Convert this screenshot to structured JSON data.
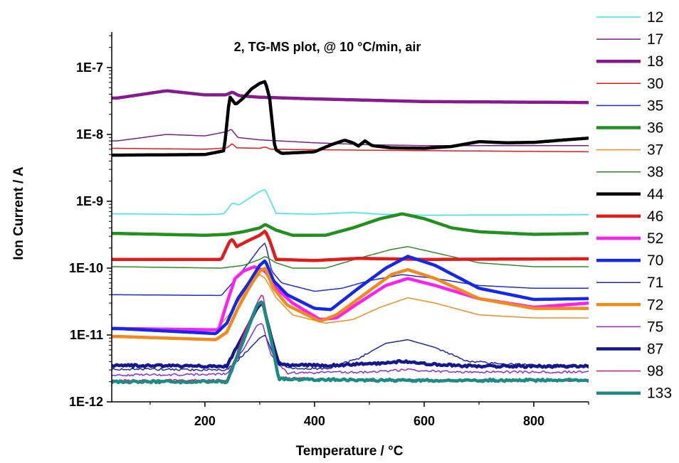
{
  "chart_data": {
    "type": "line",
    "title": "2, TG-MS plot, @ 10 °C/min, air",
    "xlabel": "Temperature / °C",
    "ylabel": "Ion Current / A",
    "xlim": [
      30,
      900
    ],
    "ylim": [
      1e-12,
      3e-07
    ],
    "yscale": "log",
    "x_ticks": [
      200,
      400,
      600,
      800
    ],
    "x_tick_labels": [
      "200",
      "400",
      "600",
      "800"
    ],
    "y_ticks": [
      1e-12,
      1e-11,
      1e-10,
      1e-09,
      1e-08,
      1e-07
    ],
    "y_tick_labels": [
      "1E-12",
      "1E-11",
      "1E-10",
      "1E-9",
      "1E-8",
      "1E-7"
    ],
    "grid": false,
    "legend_position": "right",
    "series": [
      {
        "name": "12",
        "color": "#33e6f0",
        "width": 1.5,
        "points": [
          [
            40,
            6.5e-10
          ],
          [
            200,
            6.3e-10
          ],
          [
            235,
            6.5e-10
          ],
          [
            250,
            9.5e-10
          ],
          [
            262,
            8.8e-10
          ],
          [
            280,
            1.1e-09
          ],
          [
            300,
            1.4e-09
          ],
          [
            310,
            1.5e-09
          ],
          [
            320,
            1e-09
          ],
          [
            330,
            6.6e-10
          ],
          [
            400,
            6.4e-10
          ],
          [
            470,
            6.8e-10
          ],
          [
            520,
            6.4e-10
          ],
          [
            600,
            6.2e-10
          ],
          [
            900,
            6.3e-10
          ]
        ]
      },
      {
        "name": "17",
        "color": "#7b1f86",
        "width": 1.5,
        "points": [
          [
            40,
            8e-09
          ],
          [
            130,
            1e-08
          ],
          [
            200,
            9.5e-09
          ],
          [
            240,
            1.1e-08
          ],
          [
            248,
            1.2e-08
          ],
          [
            260,
            9e-09
          ],
          [
            300,
            8.3e-09
          ],
          [
            400,
            7.5e-09
          ],
          [
            500,
            7e-09
          ],
          [
            600,
            6.8e-09
          ],
          [
            900,
            6.8e-09
          ]
        ]
      },
      {
        "name": "18",
        "color": "#871a8e",
        "width": 4.5,
        "points": [
          [
            40,
            3.5e-08
          ],
          [
            130,
            4.5e-08
          ],
          [
            200,
            3.9e-08
          ],
          [
            238,
            3.9e-08
          ],
          [
            250,
            4.3e-08
          ],
          [
            262,
            3.8e-08
          ],
          [
            300,
            3.6e-08
          ],
          [
            400,
            3.4e-08
          ],
          [
            600,
            3.1e-08
          ],
          [
            900,
            3e-08
          ]
        ]
      },
      {
        "name": "30",
        "color": "#e5191c",
        "width": 1.5,
        "points": [
          [
            40,
            6.2e-09
          ],
          [
            200,
            6e-09
          ],
          [
            240,
            6.3e-09
          ],
          [
            250,
            7.3e-09
          ],
          [
            258,
            6.3e-09
          ],
          [
            300,
            6.2e-09
          ],
          [
            310,
            6.5e-09
          ],
          [
            320,
            6e-09
          ],
          [
            500,
            5.8e-09
          ],
          [
            900,
            5.5e-09
          ]
        ]
      },
      {
        "name": "35",
        "color": "#1e2ad4",
        "width": 1.5,
        "points": [
          [
            40,
            4e-11
          ],
          [
            230,
            3.9e-11
          ],
          [
            250,
            6e-11
          ],
          [
            280,
            1.2e-10
          ],
          [
            300,
            2e-10
          ],
          [
            310,
            2.4e-10
          ],
          [
            322,
            9e-11
          ],
          [
            340,
            6e-11
          ],
          [
            400,
            4.5e-11
          ],
          [
            450,
            5e-11
          ],
          [
            500,
            6.5e-11
          ],
          [
            560,
            8e-11
          ],
          [
            620,
            7e-11
          ],
          [
            700,
            5.5e-11
          ],
          [
            800,
            5e-11
          ],
          [
            900,
            5e-11
          ]
        ]
      },
      {
        "name": "36",
        "color": "#238f1f",
        "width": 4.5,
        "points": [
          [
            40,
            3.3e-10
          ],
          [
            200,
            3.1e-10
          ],
          [
            240,
            3.2e-10
          ],
          [
            270,
            3.5e-10
          ],
          [
            300,
            4e-10
          ],
          [
            310,
            4.5e-10
          ],
          [
            330,
            3.7e-10
          ],
          [
            360,
            3.1e-10
          ],
          [
            420,
            3.1e-10
          ],
          [
            470,
            4e-10
          ],
          [
            520,
            5.5e-10
          ],
          [
            560,
            6.5e-10
          ],
          [
            600,
            5.5e-10
          ],
          [
            650,
            4e-10
          ],
          [
            700,
            3.5e-10
          ],
          [
            800,
            3.2e-10
          ],
          [
            900,
            3.3e-10
          ]
        ]
      },
      {
        "name": "37",
        "color": "#f28b22",
        "width": 1.5,
        "points": [
          [
            40,
            1.2e-11
          ],
          [
            220,
            1.2e-11
          ],
          [
            250,
            2.3e-11
          ],
          [
            280,
            5.5e-11
          ],
          [
            300,
            8e-11
          ],
          [
            310,
            7e-11
          ],
          [
            330,
            3.6e-11
          ],
          [
            360,
            2e-11
          ],
          [
            420,
            1.5e-11
          ],
          [
            470,
            1.7e-11
          ],
          [
            520,
            2.6e-11
          ],
          [
            570,
            3.6e-11
          ],
          [
            620,
            3e-11
          ],
          [
            700,
            2e-11
          ],
          [
            800,
            1.8e-11
          ],
          [
            900,
            1.8e-11
          ]
        ]
      },
      {
        "name": "38",
        "color": "#2c8c2a",
        "width": 1.5,
        "points": [
          [
            40,
            1.05e-10
          ],
          [
            230,
            1e-10
          ],
          [
            270,
            1.1e-10
          ],
          [
            300,
            1.35e-10
          ],
          [
            310,
            1.5e-10
          ],
          [
            330,
            1.2e-10
          ],
          [
            360,
            1e-10
          ],
          [
            420,
            1e-10
          ],
          [
            480,
            1.4e-10
          ],
          [
            540,
            1.9e-10
          ],
          [
            570,
            2.1e-10
          ],
          [
            620,
            1.7e-10
          ],
          [
            700,
            1.2e-10
          ],
          [
            800,
            1.05e-10
          ],
          [
            900,
            1.05e-10
          ]
        ]
      },
      {
        "name": "44",
        "color": "#000000",
        "width": 4.5,
        "points": [
          [
            40,
            4.9e-09
          ],
          [
            200,
            5e-09
          ],
          [
            235,
            5.7e-09
          ],
          [
            245,
            3.7e-08
          ],
          [
            256,
            2.8e-08
          ],
          [
            270,
            3.5e-08
          ],
          [
            285,
            4.8e-08
          ],
          [
            300,
            5.8e-08
          ],
          [
            310,
            6.2e-08
          ],
          [
            318,
            3.5e-08
          ],
          [
            328,
            6e-09
          ],
          [
            340,
            5.2e-09
          ],
          [
            400,
            5.5e-09
          ],
          [
            430,
            7e-09
          ],
          [
            455,
            8.2e-09
          ],
          [
            470,
            7.5e-09
          ],
          [
            480,
            6.7e-09
          ],
          [
            492,
            8e-09
          ],
          [
            505,
            6.8e-09
          ],
          [
            540,
            6.3e-09
          ],
          [
            600,
            6.2e-09
          ],
          [
            650,
            6.6e-09
          ],
          [
            700,
            7.8e-09
          ],
          [
            750,
            7.5e-09
          ],
          [
            800,
            7.6e-09
          ],
          [
            850,
            8.2e-09
          ],
          [
            900,
            8.8e-09
          ]
        ]
      },
      {
        "name": "46",
        "color": "#e01b1b",
        "width": 4.5,
        "points": [
          [
            40,
            1.35e-10
          ],
          [
            230,
            1.35e-10
          ],
          [
            245,
            2.5e-10
          ],
          [
            250,
            2.7e-10
          ],
          [
            258,
            2.1e-10
          ],
          [
            280,
            2.6e-10
          ],
          [
            300,
            3.1e-10
          ],
          [
            310,
            3.6e-10
          ],
          [
            318,
            2.6e-10
          ],
          [
            330,
            1.35e-10
          ],
          [
            400,
            1.3e-10
          ],
          [
            480,
            1.4e-10
          ],
          [
            600,
            1.35e-10
          ],
          [
            900,
            1.38e-10
          ]
        ]
      },
      {
        "name": "52",
        "color": "#ff1ff2",
        "width": 4.5,
        "points": [
          [
            40,
            1.25e-11
          ],
          [
            200,
            1.2e-11
          ],
          [
            225,
            1.2e-11
          ],
          [
            240,
            3e-11
          ],
          [
            255,
            7e-11
          ],
          [
            270,
            9e-11
          ],
          [
            290,
            1.05e-10
          ],
          [
            310,
            9e-11
          ],
          [
            330,
            5e-11
          ],
          [
            360,
            3e-11
          ],
          [
            410,
            1.7e-11
          ],
          [
            440,
            1.8e-11
          ],
          [
            480,
            3e-11
          ],
          [
            530,
            5.5e-11
          ],
          [
            570,
            7e-11
          ],
          [
            620,
            5.5e-11
          ],
          [
            700,
            3.5e-11
          ],
          [
            800,
            2.6e-11
          ],
          [
            900,
            3e-11
          ]
        ]
      },
      {
        "name": "70",
        "color": "#1428e8",
        "width": 4.5,
        "points": [
          [
            40,
            1.25e-11
          ],
          [
            220,
            1.05e-11
          ],
          [
            240,
            1.5e-11
          ],
          [
            260,
            3.5e-11
          ],
          [
            280,
            6e-11
          ],
          [
            300,
            1.1e-10
          ],
          [
            310,
            1.3e-10
          ],
          [
            325,
            6.5e-11
          ],
          [
            350,
            4e-11
          ],
          [
            400,
            2.5e-11
          ],
          [
            430,
            2.4e-11
          ],
          [
            480,
            5e-11
          ],
          [
            530,
            1e-10
          ],
          [
            570,
            1.5e-10
          ],
          [
            620,
            1.1e-10
          ],
          [
            700,
            5e-11
          ],
          [
            800,
            3.4e-11
          ],
          [
            900,
            3.5e-11
          ]
        ]
      },
      {
        "name": "71",
        "color": "#1f2aa1",
        "width": 1.5,
        "points": [
          [
            40,
            3.1e-12
          ],
          [
            240,
            3e-12
          ],
          [
            270,
            5e-12
          ],
          [
            300,
            9e-12
          ],
          [
            310,
            1e-11
          ],
          [
            325,
            5e-12
          ],
          [
            350,
            3.2e-12
          ],
          [
            420,
            3.1e-12
          ],
          [
            480,
            4.5e-12
          ],
          [
            530,
            7.5e-12
          ],
          [
            570,
            8.5e-12
          ],
          [
            620,
            6.5e-12
          ],
          [
            680,
            4e-12
          ],
          [
            800,
            3.5e-12
          ],
          [
            900,
            3.5e-12
          ]
        ]
      },
      {
        "name": "72",
        "color": "#f08a1c",
        "width": 4.5,
        "points": [
          [
            40,
            9.5e-12
          ],
          [
            220,
            8.5e-12
          ],
          [
            240,
            1.1e-11
          ],
          [
            260,
            2.5e-11
          ],
          [
            280,
            5e-11
          ],
          [
            300,
            9e-11
          ],
          [
            310,
            1e-10
          ],
          [
            325,
            5e-11
          ],
          [
            350,
            2.8e-11
          ],
          [
            410,
            1.6e-11
          ],
          [
            440,
            2e-11
          ],
          [
            490,
            4e-11
          ],
          [
            540,
            8e-11
          ],
          [
            570,
            9.5e-11
          ],
          [
            620,
            7e-11
          ],
          [
            700,
            3.5e-11
          ],
          [
            800,
            2.5e-11
          ],
          [
            900,
            2.5e-11
          ]
        ]
      },
      {
        "name": "75",
        "color": "#8e2bcf",
        "width": 1.5,
        "points": [
          [
            40,
            2.5e-12
          ],
          [
            240,
            2.6e-12
          ],
          [
            270,
            6e-12
          ],
          [
            295,
            1.4e-11
          ],
          [
            305,
            1.5e-11
          ],
          [
            320,
            5e-12
          ],
          [
            350,
            2.7e-12
          ],
          [
            500,
            2.8e-12
          ],
          [
            570,
            3e-12
          ],
          [
            650,
            2.8e-12
          ],
          [
            900,
            2.8e-12
          ]
        ]
      },
      {
        "name": "87",
        "color": "#15178f",
        "width": 4.5,
        "points": [
          [
            40,
            3.5e-12
          ],
          [
            240,
            3.4e-12
          ],
          [
            270,
            1e-11
          ],
          [
            295,
            2.5e-11
          ],
          [
            305,
            3.1e-11
          ],
          [
            320,
            1e-11
          ],
          [
            335,
            3.6e-12
          ],
          [
            420,
            3.5e-12
          ],
          [
            500,
            3.7e-12
          ],
          [
            560,
            4e-12
          ],
          [
            620,
            3.6e-12
          ],
          [
            700,
            3.4e-12
          ],
          [
            900,
            3.4e-12
          ]
        ]
      },
      {
        "name": "98",
        "color": "#e0157a",
        "width": 1.5,
        "points": [
          [
            40,
            2.1e-12
          ],
          [
            240,
            2.1e-12
          ],
          [
            270,
            1e-11
          ],
          [
            295,
            3e-11
          ],
          [
            305,
            4.2e-11
          ],
          [
            320,
            1e-11
          ],
          [
            335,
            2.3e-12
          ],
          [
            500,
            2.1e-12
          ],
          [
            900,
            2.1e-12
          ]
        ]
      },
      {
        "name": "133",
        "color": "#1d8a84",
        "width": 4.5,
        "points": [
          [
            40,
            2e-12
          ],
          [
            240,
            2e-12
          ],
          [
            270,
            8e-12
          ],
          [
            295,
            2.8e-11
          ],
          [
            305,
            3.2e-11
          ],
          [
            320,
            9e-12
          ],
          [
            335,
            2.2e-12
          ],
          [
            500,
            2.1e-12
          ],
          [
            900,
            2.1e-12
          ]
        ]
      }
    ]
  }
}
